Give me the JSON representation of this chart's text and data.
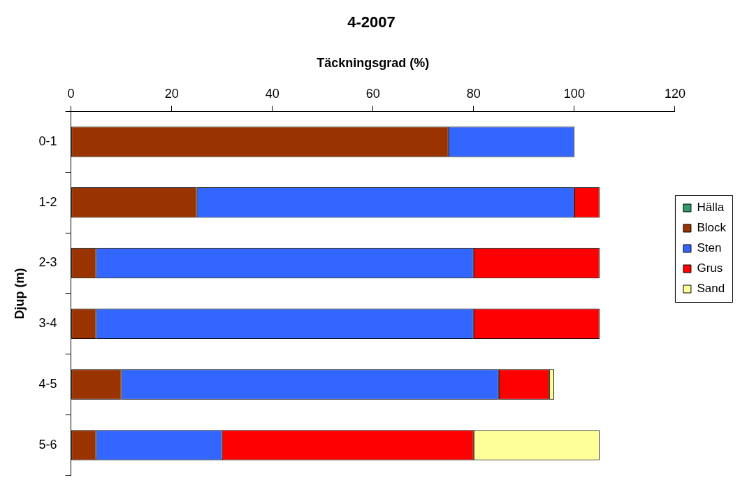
{
  "chart_data": {
    "type": "bar",
    "title": "4-2007",
    "xlabel": "Täckningsgrad (%)",
    "ylabel": "Djup (m)",
    "orientation": "horizontal",
    "stacked": true,
    "categories": [
      "0-1",
      "1-2",
      "2-3",
      "3-4",
      "4-5",
      "5-6"
    ],
    "series": [
      {
        "name": "Hälla",
        "color": "#339966",
        "values": [
          0,
          0,
          0,
          0,
          0,
          0
        ]
      },
      {
        "name": "Block",
        "color": "#993300",
        "values": [
          75,
          25,
          5,
          5,
          10,
          5
        ]
      },
      {
        "name": "Sten",
        "color": "#3366ff",
        "values": [
          25,
          75,
          75,
          75,
          75,
          25
        ]
      },
      {
        "name": "Grus",
        "color": "#ff0000",
        "values": [
          0,
          5,
          25,
          25,
          10,
          50
        ]
      },
      {
        "name": "Sand",
        "color": "#ffff99",
        "values": [
          0,
          0,
          0,
          0,
          1,
          25
        ]
      }
    ],
    "xlim": [
      0,
      120
    ],
    "xticks": [
      0,
      20,
      40,
      60,
      80,
      100,
      120
    ],
    "grid": false,
    "legend": "right"
  }
}
